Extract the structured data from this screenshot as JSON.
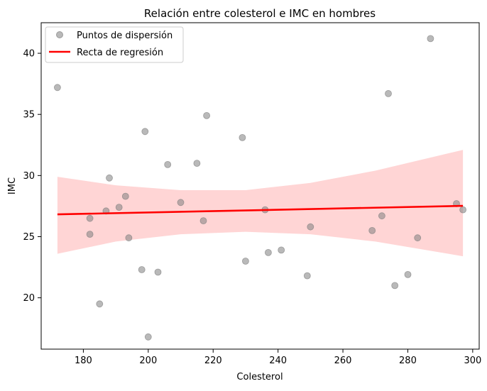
{
  "chart_data": {
    "type": "scatter",
    "title": "Relación entre colesterol e IMC en hombres",
    "xlabel": "Colesterol",
    "ylabel": "IMC",
    "xlim": [
      167,
      302
    ],
    "ylim": [
      15.8,
      42.5
    ],
    "xticks": [
      180,
      200,
      220,
      240,
      260,
      280,
      300
    ],
    "yticks": [
      20,
      25,
      30,
      35,
      40
    ],
    "grid": false,
    "legend": {
      "placement": "top-left",
      "entries": [
        {
          "label": "Puntos de dispersión",
          "kind": "point",
          "color": "#808080"
        },
        {
          "label": "Recta de regresión",
          "kind": "line",
          "color": "#ff0000"
        }
      ]
    },
    "series": [
      {
        "kind": "scatter",
        "color": "#808080",
        "points": [
          [
            172,
            37.2
          ],
          [
            182,
            26.5
          ],
          [
            182,
            25.2
          ],
          [
            185,
            19.5
          ],
          [
            187,
            27.1
          ],
          [
            188,
            29.8
          ],
          [
            191,
            27.4
          ],
          [
            193,
            28.3
          ],
          [
            194,
            24.9
          ],
          [
            198,
            22.3
          ],
          [
            199,
            33.6
          ],
          [
            200,
            16.8
          ],
          [
            203,
            22.1
          ],
          [
            206,
            30.9
          ],
          [
            210,
            27.8
          ],
          [
            215,
            31.0
          ],
          [
            217,
            26.3
          ],
          [
            218,
            34.9
          ],
          [
            229,
            33.1
          ],
          [
            230,
            23.0
          ],
          [
            236,
            27.2
          ],
          [
            237,
            23.7
          ],
          [
            241,
            23.9
          ],
          [
            249,
            21.8
          ],
          [
            250,
            25.8
          ],
          [
            269,
            25.5
          ],
          [
            272,
            26.7
          ],
          [
            274,
            36.7
          ],
          [
            276,
            21.0
          ],
          [
            280,
            21.9
          ],
          [
            283,
            24.9
          ],
          [
            287,
            41.2
          ],
          [
            295,
            27.7
          ],
          [
            297,
            27.2
          ]
        ]
      },
      {
        "kind": "regression",
        "color": "#ff0000",
        "line": [
          [
            172,
            26.82
          ],
          [
            297,
            27.52
          ]
        ],
        "band_color": "#ffd5d5",
        "band": [
          [
            172,
            23.6,
            29.9
          ],
          [
            190,
            24.6,
            29.2
          ],
          [
            210,
            25.2,
            28.8
          ],
          [
            230,
            25.4,
            28.8
          ],
          [
            250,
            25.2,
            29.4
          ],
          [
            270,
            24.6,
            30.4
          ],
          [
            297,
            23.4,
            32.1
          ]
        ]
      }
    ]
  }
}
